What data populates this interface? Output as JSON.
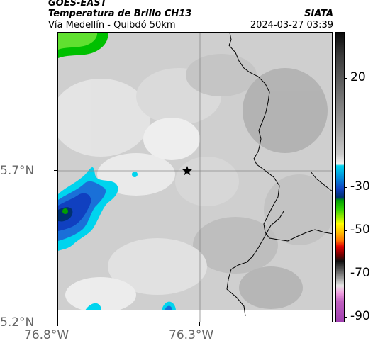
{
  "header": {
    "satellite": "GOES-EAST",
    "product": "Temperatura de Brillo CH13",
    "route": "Vía Medellín - Quibdó 50km",
    "agency": "SIATA",
    "timestamp": "2024-03-27 03:39"
  },
  "map": {
    "lat_labels": [
      "5.7°N",
      "5.2°N"
    ],
    "lon_labels": [
      "76.8°W",
      "76.3°W"
    ],
    "marker": "star-icon",
    "colors": {
      "background": "#cfcfcf",
      "coastline": "#000000",
      "gridline": "#888888",
      "cold_cloud_cyan": "#00d4ee",
      "cold_cloud_blue": "#1040c0",
      "cold_cloud_green": "#00c000"
    }
  },
  "colorbar": {
    "ticks": [
      "20",
      "-30",
      "-50",
      "-70",
      "-90"
    ],
    "unit_values": [
      20,
      -30,
      -50,
      -70,
      -90
    ]
  }
}
